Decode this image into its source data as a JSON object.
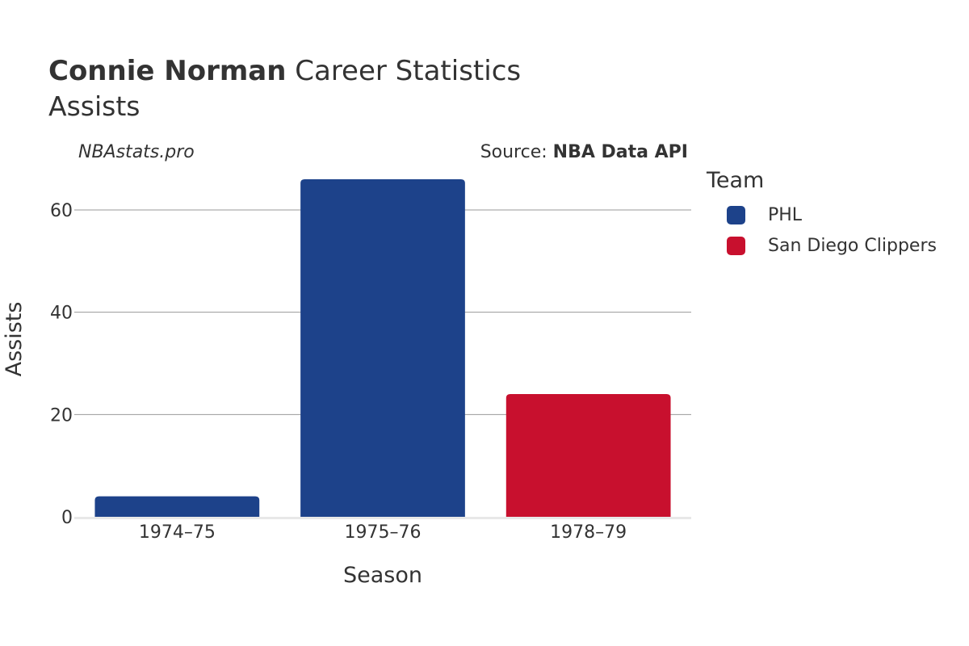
{
  "chart_data": {
    "type": "bar",
    "title_bold": "Connie Norman",
    "title_rest": " Career Statistics",
    "subtitle": "Assists",
    "watermark": "NBAstats.pro",
    "source_prefix": "Source: ",
    "source_bold": "NBA Data API",
    "xlabel": "Season",
    "ylabel": "Assists",
    "categories": [
      "1974–75",
      "1975–76",
      "1978–79"
    ],
    "values": [
      4,
      66,
      24
    ],
    "bar_teams": [
      "PHL",
      "PHL",
      "San Diego Clippers"
    ],
    "yticks": [
      0,
      20,
      40,
      60
    ],
    "ylim": [
      0,
      70
    ],
    "legend_title": "Team",
    "legend": [
      {
        "name": "PHL",
        "color": "#1d428a"
      },
      {
        "name": "San Diego Clippers",
        "color": "#c8102e"
      }
    ],
    "grid": true
  }
}
